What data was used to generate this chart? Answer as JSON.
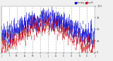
{
  "background_color": "#f0f0f0",
  "plot_bg_color": "#ffffff",
  "grid_color": "#aaaaaa",
  "bar_color_blue": "#0000cc",
  "bar_color_red": "#cc0000",
  "ylim": [
    0,
    100
  ],
  "yticks": [
    0,
    25,
    50,
    75,
    100
  ],
  "ytick_labels": [
    "0",
    "25",
    "50",
    "75",
    "100"
  ],
  "n_days": 365,
  "seed": 7,
  "n_gridlines": 13,
  "legend_blue_label": "Humidity",
  "legend_red_label": "Dew Pt"
}
